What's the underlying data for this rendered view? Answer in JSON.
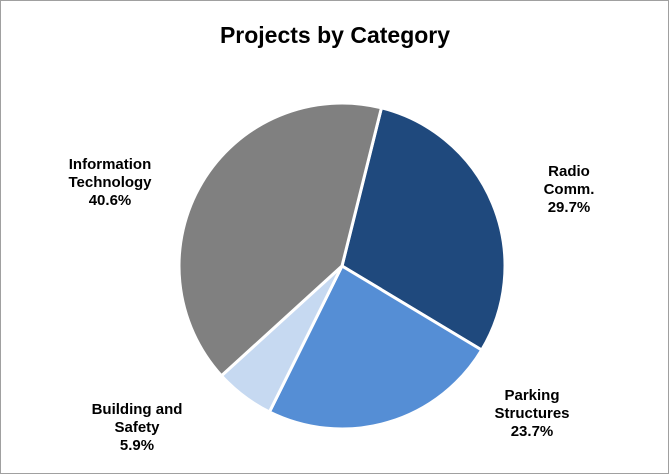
{
  "chart_data": {
    "type": "pie",
    "title": "Projects by Category",
    "categories": [
      "Radio Comm.",
      "Parking Structures",
      "Building and Safety",
      "Information Technology"
    ],
    "values": [
      29.7,
      23.7,
      5.9,
      40.6
    ],
    "value_labels": [
      "29.7%",
      "23.7%",
      "5.9%",
      "40.6%"
    ],
    "colors": [
      "#1f497d",
      "#558ed5",
      "#c6d9f1",
      "#808080"
    ]
  }
}
